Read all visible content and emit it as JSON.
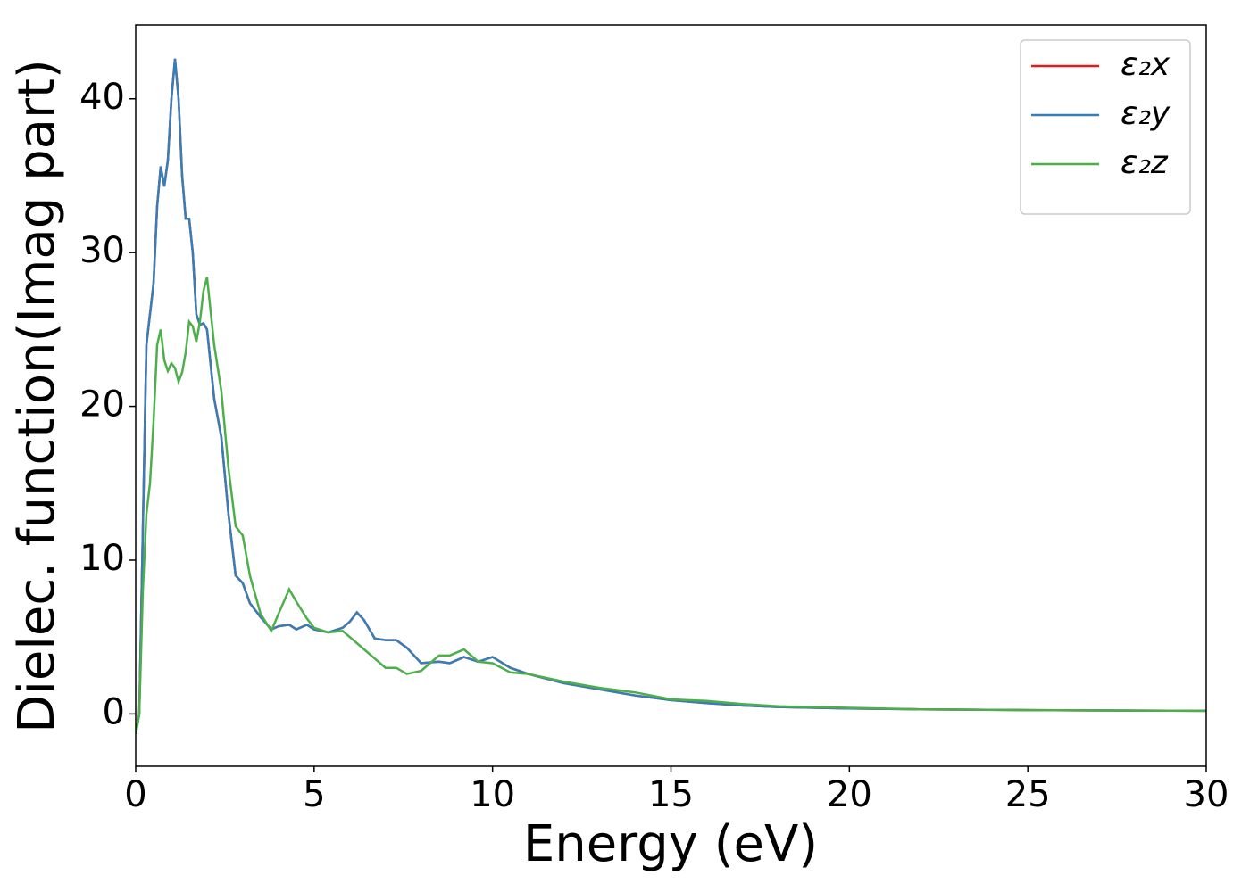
{
  "chart_data": {
    "type": "line",
    "xlabel": "Energy (eV)",
    "ylabel": "Dielec. function(Imag part)",
    "x": [
      0,
      0.1,
      0.2,
      0.3,
      0.4,
      0.5,
      0.6,
      0.7,
      0.8,
      0.9,
      1.0,
      1.1,
      1.2,
      1.3,
      1.4,
      1.5,
      1.6,
      1.7,
      1.8,
      1.9,
      2.0,
      2.2,
      2.4,
      2.6,
      2.8,
      3.0,
      3.2,
      3.5,
      3.8,
      4.0,
      4.3,
      4.5,
      4.8,
      5.0,
      5.4,
      5.8,
      6.0,
      6.2,
      6.4,
      6.7,
      7.0,
      7.3,
      7.6,
      8.0,
      8.5,
      8.8,
      9.2,
      9.6,
      10.0,
      10.5,
      11,
      12,
      13,
      14,
      15,
      16,
      17,
      18,
      20,
      22,
      25,
      30
    ],
    "series": [
      {
        "name": "ε₂x",
        "color": "#e41a1c",
        "values": [
          -1.3,
          0,
          12,
          24,
          26,
          28,
          33,
          35.6,
          34.3,
          36,
          40,
          42.6,
          40,
          35,
          32.2,
          32.2,
          30,
          26,
          25.3,
          25.4,
          25,
          20.5,
          18,
          13,
          9,
          8.5,
          7.2,
          6.3,
          5.5,
          5.7,
          5.8,
          5.5,
          5.8,
          5.5,
          5.3,
          5.6,
          6.0,
          6.6,
          6.1,
          4.9,
          4.8,
          4.8,
          4.3,
          3.3,
          3.4,
          3.3,
          3.7,
          3.4,
          3.7,
          3.0,
          2.6,
          2.0,
          1.6,
          1.2,
          0.9,
          0.7,
          0.55,
          0.45,
          0.35,
          0.3,
          0.25,
          0.2
        ]
      },
      {
        "name": "ε₂y",
        "color": "#377eb8",
        "values": [
          -1.3,
          0,
          12,
          24,
          26,
          28,
          33,
          35.6,
          34.3,
          36,
          40,
          42.6,
          40,
          35,
          32.2,
          32.2,
          30,
          26,
          25.3,
          25.4,
          25,
          20.5,
          18,
          13,
          9,
          8.5,
          7.2,
          6.3,
          5.5,
          5.7,
          5.8,
          5.5,
          5.8,
          5.5,
          5.3,
          5.6,
          6.0,
          6.6,
          6.1,
          4.9,
          4.8,
          4.8,
          4.3,
          3.3,
          3.4,
          3.3,
          3.7,
          3.4,
          3.7,
          3.0,
          2.6,
          2.0,
          1.6,
          1.2,
          0.9,
          0.7,
          0.55,
          0.45,
          0.35,
          0.3,
          0.25,
          0.2
        ]
      },
      {
        "name": "ε₂z",
        "color": "#4daf4a",
        "values": [
          -1.3,
          0,
          8,
          13,
          15,
          19,
          24,
          25,
          23,
          22.3,
          22.8,
          22.5,
          21.6,
          22.2,
          23.5,
          25.5,
          25.2,
          24.2,
          25.5,
          27.5,
          28.4,
          24,
          21,
          16,
          12.2,
          11.6,
          9,
          6.5,
          5.4,
          6.5,
          8.1,
          7.3,
          6.2,
          5.6,
          5.3,
          5.4,
          5.0,
          4.6,
          4.2,
          3.6,
          3.0,
          3.0,
          2.6,
          2.8,
          3.8,
          3.8,
          4.2,
          3.4,
          3.3,
          2.7,
          2.6,
          2.1,
          1.7,
          1.4,
          0.95,
          0.85,
          0.65,
          0.5,
          0.4,
          0.3,
          0.25,
          0.2
        ]
      }
    ],
    "xlim": [
      0,
      30
    ],
    "xticks": [
      0,
      5,
      10,
      15,
      20,
      25,
      30
    ],
    "ylim": [
      -3.4,
      44.8
    ],
    "yticks": [
      0,
      10,
      20,
      30,
      40
    ],
    "legend": "upper right"
  }
}
